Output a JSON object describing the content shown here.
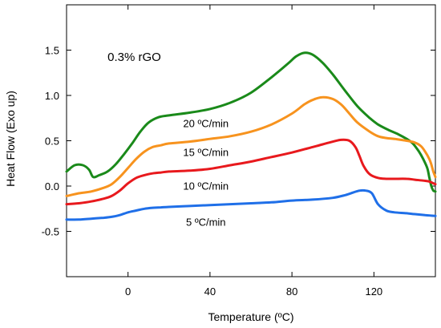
{
  "chart_data": {
    "type": "line",
    "xlabel": "Temperature (ºC)",
    "ylabel": "Heat Flow (Exo up)",
    "xlim": [
      -30,
      150
    ],
    "ylim": [
      -1.0,
      2.0
    ],
    "xticks": [
      0,
      40,
      80,
      120
    ],
    "xtick_labels": [
      "0",
      "40",
      "80",
      "120"
    ],
    "yticks": [
      -0.5,
      0.0,
      0.5,
      1.0,
      1.5
    ],
    "ytick_labels": [
      "-0.5",
      "0.0",
      "0.5",
      "1.0",
      "1.5"
    ],
    "grid": false,
    "annotation": "0.3% rGO",
    "series": [
      {
        "name": "20 ºC/min",
        "color": "#1a8a1a",
        "x": [
          -30,
          -26,
          -22,
          -19,
          -17,
          -14,
          -10,
          -6,
          -2,
          2,
          6,
          10,
          15,
          20,
          30,
          40,
          50,
          60,
          70,
          78,
          82,
          86,
          90,
          95,
          100,
          106,
          112,
          118,
          122,
          127,
          132,
          136,
          139,
          142,
          144,
          146,
          147,
          148,
          149,
          150
        ],
        "y": [
          0.16,
          0.23,
          0.23,
          0.18,
          0.1,
          0.12,
          0.16,
          0.24,
          0.35,
          0.47,
          0.6,
          0.7,
          0.76,
          0.78,
          0.81,
          0.85,
          0.92,
          1.03,
          1.2,
          1.35,
          1.43,
          1.47,
          1.45,
          1.36,
          1.23,
          1.05,
          0.88,
          0.75,
          0.68,
          0.62,
          0.57,
          0.52,
          0.47,
          0.38,
          0.3,
          0.2,
          0.1,
          0.0,
          -0.05,
          -0.06
        ]
      },
      {
        "name": "15 ºC/min",
        "color": "#f7931e",
        "x": [
          -30,
          -24,
          -18,
          -12,
          -8,
          -4,
          0,
          4,
          8,
          12,
          16,
          20,
          30,
          40,
          50,
          60,
          70,
          80,
          86,
          90,
          95,
          100,
          104,
          108,
          112,
          118,
          122,
          126,
          130,
          136,
          140,
          143,
          145,
          147,
          148,
          149,
          150
        ],
        "y": [
          -0.11,
          -0.08,
          -0.06,
          -0.02,
          0.02,
          0.1,
          0.2,
          0.3,
          0.38,
          0.43,
          0.45,
          0.47,
          0.49,
          0.52,
          0.55,
          0.6,
          0.68,
          0.8,
          0.9,
          0.95,
          0.98,
          0.96,
          0.9,
          0.8,
          0.7,
          0.6,
          0.55,
          0.53,
          0.52,
          0.5,
          0.48,
          0.44,
          0.38,
          0.3,
          0.24,
          0.16,
          0.1
        ]
      },
      {
        "name": "10 ºC/min",
        "color": "#e8191d",
        "x": [
          -30,
          -24,
          -18,
          -12,
          -8,
          -4,
          0,
          4,
          8,
          12,
          16,
          20,
          30,
          40,
          50,
          60,
          70,
          80,
          90,
          95,
          100,
          104,
          108,
          111,
          113,
          115,
          118,
          122,
          126,
          130,
          136,
          140,
          144,
          147,
          150
        ],
        "y": [
          -0.2,
          -0.19,
          -0.17,
          -0.14,
          -0.11,
          -0.05,
          0.03,
          0.09,
          0.12,
          0.14,
          0.15,
          0.16,
          0.17,
          0.19,
          0.23,
          0.27,
          0.32,
          0.37,
          0.43,
          0.46,
          0.49,
          0.51,
          0.5,
          0.43,
          0.33,
          0.22,
          0.13,
          0.09,
          0.08,
          0.08,
          0.08,
          0.07,
          0.06,
          0.05,
          0.02
        ]
      },
      {
        "name": "5 ºC/min",
        "color": "#1f6fe8",
        "x": [
          -30,
          -24,
          -18,
          -12,
          -8,
          -4,
          0,
          4,
          8,
          12,
          16,
          20,
          30,
          40,
          50,
          60,
          70,
          80,
          90,
          100,
          106,
          110,
          113,
          116,
          119,
          122,
          126,
          130,
          136,
          140,
          145,
          150
        ],
        "y": [
          -0.37,
          -0.37,
          -0.36,
          -0.35,
          -0.34,
          -0.32,
          -0.29,
          -0.27,
          -0.25,
          -0.24,
          -0.235,
          -0.23,
          -0.22,
          -0.21,
          -0.2,
          -0.19,
          -0.18,
          -0.16,
          -0.15,
          -0.13,
          -0.1,
          -0.07,
          -0.05,
          -0.05,
          -0.08,
          -0.2,
          -0.27,
          -0.29,
          -0.3,
          -0.31,
          -0.32,
          -0.33
        ]
      }
    ],
    "series_label_positions": [
      {
        "series": 0,
        "x": 38,
        "y": 0.65
      },
      {
        "series": 1,
        "x": 38,
        "y": 0.33
      },
      {
        "series": 2,
        "x": 38,
        "y": -0.04
      },
      {
        "series": 3,
        "x": 38,
        "y": -0.44
      }
    ],
    "annotation_position": {
      "x": -10,
      "y": 1.38
    }
  }
}
